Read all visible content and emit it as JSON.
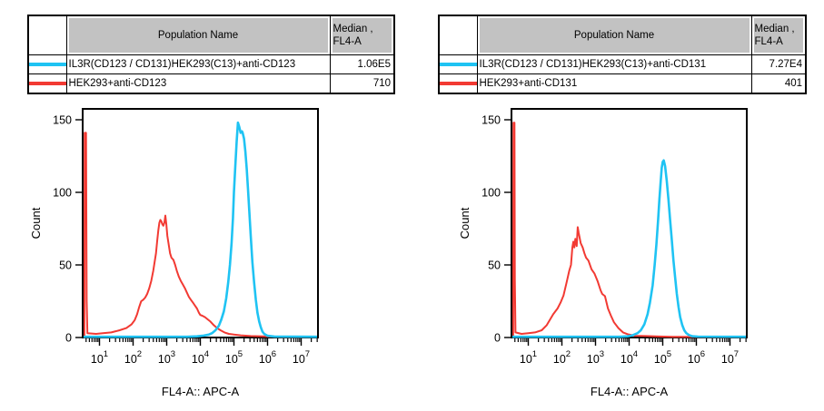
{
  "colors": {
    "positive_series": "#1fc3f3",
    "control_series": "#f23a33",
    "table_header_bg": "#c2c2c2",
    "axis": "#000000",
    "background": "#ffffff"
  },
  "panels": [
    {
      "id": "anti-CD123",
      "table": {
        "population_header": "Population Name",
        "median_header_line1": "Median ,",
        "median_header_line2": "FL4-A",
        "rows": [
          {
            "swatch_color": "#1fc3f3",
            "population": "IL3R(CD123 / CD131)HEK293(C13)+anti-CD123",
            "median": "1.06E5"
          },
          {
            "swatch_color": "#f23a33",
            "population": "HEK293+anti-CD123",
            "median": "710"
          }
        ]
      }
    },
    {
      "id": "anti-CD131",
      "table": {
        "population_header": "Population Name",
        "median_header_line1": "Median ,",
        "median_header_line2": "FL4-A",
        "rows": [
          {
            "swatch_color": "#1fc3f3",
            "population": "IL3R(CD123 / CD131)HEK293(C13)+anti-CD131",
            "median": "7.27E4"
          },
          {
            "swatch_color": "#f23a33",
            "population": "HEK293+anti-CD131",
            "median": "401"
          }
        ]
      }
    }
  ],
  "chart_data": [
    {
      "type": "line",
      "title": "",
      "xlabel": "FL4-A:: APC-A",
      "ylabel": "Count",
      "x_scale": "log10",
      "xlim_log10": [
        0.5,
        7.5
      ],
      "x_major_exponents": [
        1,
        2,
        3,
        4,
        5,
        6,
        7
      ],
      "x_tick_base": "10",
      "ylim": [
        0,
        157.5
      ],
      "y_ticks": [
        0,
        50,
        100,
        150
      ],
      "grid": false,
      "legend_position": "table-above",
      "series": [
        {
          "name": "IL3R(CD123 / CD131)HEK293(C13)+anti-CD123",
          "color": "#1fc3f3",
          "median_fl4a": "1.06E5",
          "peak_count": 148,
          "points_log10x_count": [
            [
              0.5,
              0.5
            ],
            [
              3.6,
              0.5
            ],
            [
              3.9,
              0.8
            ],
            [
              4.1,
              1.3
            ],
            [
              4.25,
              2
            ],
            [
              4.35,
              3
            ],
            [
              4.45,
              5
            ],
            [
              4.55,
              8
            ],
            [
              4.62,
              12
            ],
            [
              4.7,
              18
            ],
            [
              4.77,
              27
            ],
            [
              4.83,
              38
            ],
            [
              4.88,
              50
            ],
            [
              4.93,
              65
            ],
            [
              4.97,
              82
            ],
            [
              5.0,
              100
            ],
            [
              5.04,
              118
            ],
            [
              5.08,
              135
            ],
            [
              5.12,
              148
            ],
            [
              5.16,
              145
            ],
            [
              5.2,
              141
            ],
            [
              5.24,
              142
            ],
            [
              5.26,
              141
            ],
            [
              5.3,
              137
            ],
            [
              5.34,
              128
            ],
            [
              5.38,
              116
            ],
            [
              5.42,
              102
            ],
            [
              5.46,
              86
            ],
            [
              5.5,
              70
            ],
            [
              5.55,
              52
            ],
            [
              5.6,
              38
            ],
            [
              5.65,
              26
            ],
            [
              5.7,
              17
            ],
            [
              5.75,
              11
            ],
            [
              5.8,
              7
            ],
            [
              5.85,
              4
            ],
            [
              5.9,
              2.5
            ],
            [
              6.0,
              1.2
            ],
            [
              6.2,
              0.7
            ],
            [
              7.5,
              0.5
            ]
          ]
        },
        {
          "name": "HEK293+anti-CD123",
          "color": "#f23a33",
          "median_fl4a": "710",
          "peak_count": 84,
          "points_log10x_count": [
            [
              0.55,
              0.5
            ],
            [
              0.56,
              141
            ],
            [
              0.6,
              141
            ],
            [
              0.62,
              25
            ],
            [
              0.64,
              3
            ],
            [
              0.9,
              2.5
            ],
            [
              1.1,
              3
            ],
            [
              1.35,
              3.5
            ],
            [
              1.6,
              5
            ],
            [
              1.8,
              6.5
            ],
            [
              1.95,
              9
            ],
            [
              2.05,
              12
            ],
            [
              2.12,
              16
            ],
            [
              2.18,
              21
            ],
            [
              2.24,
              25
            ],
            [
              2.3,
              26
            ],
            [
              2.36,
              27.5
            ],
            [
              2.42,
              30
            ],
            [
              2.48,
              34
            ],
            [
              2.54,
              39
            ],
            [
              2.6,
              46
            ],
            [
              2.64,
              52
            ],
            [
              2.68,
              58
            ],
            [
              2.72,
              67
            ],
            [
              2.75,
              74
            ],
            [
              2.78,
              79
            ],
            [
              2.81,
              81
            ],
            [
              2.84,
              80
            ],
            [
              2.87,
              78
            ],
            [
              2.9,
              77
            ],
            [
              2.93,
              79
            ],
            [
              2.96,
              84
            ],
            [
              2.99,
              78
            ],
            [
              3.02,
              70
            ],
            [
              3.06,
              64
            ],
            [
              3.1,
              58
            ],
            [
              3.14,
              55
            ],
            [
              3.2,
              53.5
            ],
            [
              3.25,
              50
            ],
            [
              3.3,
              46
            ],
            [
              3.36,
              42
            ],
            [
              3.42,
              39
            ],
            [
              3.48,
              36.5
            ],
            [
              3.54,
              34
            ],
            [
              3.6,
              31
            ],
            [
              3.66,
              28
            ],
            [
              3.72,
              26
            ],
            [
              3.78,
              24
            ],
            [
              3.84,
              22
            ],
            [
              3.9,
              20
            ],
            [
              3.96,
              17
            ],
            [
              4.0,
              15.5
            ],
            [
              4.06,
              15
            ],
            [
              4.14,
              14
            ],
            [
              4.22,
              12.5
            ],
            [
              4.3,
              11
            ],
            [
              4.4,
              8.5
            ],
            [
              4.5,
              6.5
            ],
            [
              4.6,
              5
            ],
            [
              4.72,
              3.5
            ],
            [
              4.85,
              2.5
            ],
            [
              5.0,
              2
            ],
            [
              5.2,
              1.5
            ],
            [
              5.5,
              1
            ],
            [
              6.0,
              0.7
            ],
            [
              6.5,
              0.5
            ],
            [
              7.5,
              0.5
            ]
          ]
        }
      ]
    },
    {
      "type": "line",
      "title": "",
      "xlabel": "FL4-A:: APC-A",
      "ylabel": "Count",
      "x_scale": "log10",
      "xlim_log10": [
        0.5,
        7.5
      ],
      "x_major_exponents": [
        1,
        2,
        3,
        4,
        5,
        6,
        7
      ],
      "x_tick_base": "10",
      "ylim": [
        0,
        157.5
      ],
      "y_ticks": [
        0,
        50,
        100,
        150
      ],
      "grid": false,
      "legend_position": "table-above",
      "series": [
        {
          "name": "IL3R(CD123 / CD131)HEK293(C13)+anti-CD131",
          "color": "#1fc3f3",
          "median_fl4a": "7.27E4",
          "peak_count": 122,
          "points_log10x_count": [
            [
              0.5,
              0.5
            ],
            [
              3.7,
              0.5
            ],
            [
              3.95,
              0.8
            ],
            [
              4.1,
              1.5
            ],
            [
              4.25,
              3
            ],
            [
              4.35,
              5
            ],
            [
              4.45,
              9
            ],
            [
              4.55,
              16
            ],
            [
              4.62,
              24
            ],
            [
              4.7,
              36
            ],
            [
              4.76,
              50
            ],
            [
              4.81,
              64
            ],
            [
              4.86,
              80
            ],
            [
              4.9,
              95
            ],
            [
              4.94,
              108
            ],
            [
              4.97,
              117
            ],
            [
              5.0,
              121
            ],
            [
              5.03,
              122
            ],
            [
              5.07,
              118
            ],
            [
              5.12,
              108
            ],
            [
              5.17,
              95
            ],
            [
              5.22,
              81
            ],
            [
              5.27,
              67
            ],
            [
              5.32,
              53
            ],
            [
              5.37,
              41
            ],
            [
              5.42,
              30
            ],
            [
              5.47,
              21
            ],
            [
              5.52,
              14
            ],
            [
              5.58,
              8.5
            ],
            [
              5.64,
              5
            ],
            [
              5.7,
              3
            ],
            [
              5.78,
              1.7
            ],
            [
              5.88,
              0.9
            ],
            [
              6.05,
              0.6
            ],
            [
              7.5,
              0.5
            ]
          ]
        },
        {
          "name": "HEK293+anti-CD131",
          "color": "#f23a33",
          "median_fl4a": "401",
          "peak_count": 76,
          "points_log10x_count": [
            [
              0.55,
              0.5
            ],
            [
              0.56,
              148
            ],
            [
              0.59,
              148
            ],
            [
              0.6,
              40
            ],
            [
              0.62,
              3.5
            ],
            [
              0.8,
              2.5
            ],
            [
              1.0,
              3
            ],
            [
              1.2,
              3.5
            ],
            [
              1.4,
              5
            ],
            [
              1.55,
              8.5
            ],
            [
              1.74,
              16
            ],
            [
              1.87,
              20
            ],
            [
              1.96,
              24
            ],
            [
              2.05,
              29
            ],
            [
              2.14,
              38
            ],
            [
              2.22,
              46
            ],
            [
              2.27,
              50
            ],
            [
              2.31,
              62
            ],
            [
              2.34,
              66
            ],
            [
              2.37,
              62
            ],
            [
              2.4,
              68
            ],
            [
              2.44,
              63
            ],
            [
              2.47,
              76
            ],
            [
              2.5,
              72
            ],
            [
              2.56,
              65
            ],
            [
              2.62,
              62
            ],
            [
              2.67,
              58
            ],
            [
              2.72,
              55
            ],
            [
              2.79,
              53
            ],
            [
              2.88,
              47
            ],
            [
              2.97,
              44
            ],
            [
              3.06,
              39
            ],
            [
              3.15,
              32.5
            ],
            [
              3.2,
              30
            ],
            [
              3.28,
              28.5
            ],
            [
              3.37,
              20
            ],
            [
              3.46,
              15
            ],
            [
              3.55,
              10.5
            ],
            [
              3.68,
              6.5
            ],
            [
              3.82,
              3.5
            ],
            [
              3.95,
              2.3
            ],
            [
              4.18,
              1.2
            ],
            [
              4.5,
              1
            ],
            [
              4.9,
              0.7
            ],
            [
              5.3,
              0.5
            ],
            [
              7.5,
              0.5
            ]
          ]
        }
      ]
    }
  ]
}
